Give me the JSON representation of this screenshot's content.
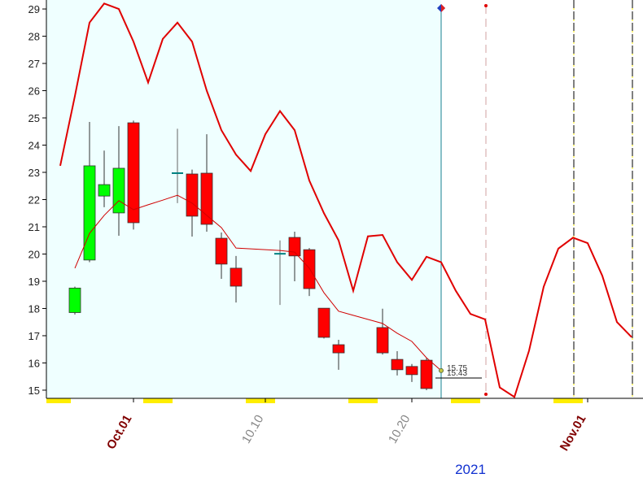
{
  "chart_data": {
    "type": "candlestick",
    "categories": [
      null,
      null,
      null,
      null,
      null,
      "Oct.01",
      null,
      null,
      null,
      null,
      null,
      null,
      null,
      null,
      "10.10",
      null,
      null,
      null,
      null,
      null,
      null,
      null,
      null,
      null,
      "10.20",
      null,
      null,
      null,
      null,
      null,
      null,
      null,
      null,
      null,
      null,
      null,
      "Nov.01",
      null,
      null,
      null
    ],
    "ohlc": {
      "up_color": "#00ff00",
      "down_color": "#ff0000",
      "doji_color": "#008080",
      "open": [
        null,
        17.85,
        19.78,
        22.13,
        21.51,
        24.82,
        null,
        null,
        22.97,
        22.94,
        22.97,
        20.58,
        19.48,
        null,
        null,
        20.01,
        20.61,
        20.16,
        18.01,
        16.67,
        null,
        null,
        17.3,
        16.13,
        15.87,
        16.1,
        null,
        null,
        null,
        null,
        null,
        null,
        null,
        null,
        null,
        null,
        null,
        null,
        null,
        null
      ],
      "high": [
        null,
        18.8,
        24.85,
        23.8,
        24.7,
        24.9,
        null,
        null,
        24.6,
        23.1,
        24.4,
        20.79,
        19.93,
        null,
        null,
        20.5,
        20.82,
        20.22,
        18.01,
        16.85,
        null,
        null,
        17.99,
        16.43,
        15.96,
        16.19,
        null,
        null,
        null,
        null,
        null,
        null,
        null,
        null,
        null,
        null,
        null,
        null,
        null,
        null
      ],
      "low": [
        null,
        17.78,
        19.7,
        21.72,
        20.67,
        20.9,
        null,
        null,
        21.87,
        20.64,
        20.82,
        19.09,
        18.22,
        null,
        null,
        18.13,
        19.0,
        18.46,
        16.9,
        15.75,
        null,
        null,
        16.31,
        15.54,
        15.3,
        15.0,
        null,
        null,
        null,
        null,
        null,
        null,
        null,
        null,
        null,
        null,
        null,
        null,
        null,
        null
      ],
      "close": [
        null,
        18.75,
        23.24,
        22.55,
        23.15,
        21.15,
        null,
        null,
        22.97,
        21.39,
        21.09,
        19.63,
        18.82,
        null,
        null,
        20.01,
        19.93,
        18.73,
        16.94,
        16.37,
        null,
        null,
        16.37,
        15.75,
        15.57,
        15.06,
        null,
        null,
        null,
        null,
        null,
        null,
        null,
        null,
        null,
        null,
        null,
        null,
        null,
        null
      ]
    },
    "series": [
      {
        "color": "#e00000",
        "values": [
          23.24,
          25.8,
          28.5,
          29.2,
          29.0,
          27.8,
          26.3,
          27.9,
          28.5,
          27.8,
          26.0,
          24.55,
          23.65,
          23.05,
          24.4,
          25.25,
          24.55,
          22.7,
          21.5,
          20.5,
          18.65,
          20.65,
          20.7,
          19.7,
          19.05,
          19.9,
          19.7,
          18.65,
          17.8,
          17.6,
          15.1,
          14.75,
          16.45,
          18.8,
          20.2,
          20.6,
          20.4,
          19.2,
          17.5,
          16.95
        ]
      },
      {
        "color": "#d00000",
        "values": [
          null,
          19.48,
          20.76,
          21.42,
          21.96,
          21.63,
          21.81,
          21.98,
          22.16,
          21.87,
          21.42,
          20.97,
          20.22,
          20.19,
          20.16,
          20.13,
          20.07,
          19.48,
          18.58,
          17.9,
          17.75,
          17.6,
          17.45,
          17.09,
          16.79,
          16.19,
          15.72,
          null,
          null,
          null,
          null,
          null,
          null,
          null,
          null,
          null,
          null,
          null,
          null,
          null
        ]
      }
    ],
    "annotations": [
      "15.75",
      "15.43"
    ],
    "xlabel": "2021",
    "ylim": [
      14.7,
      29.33
    ],
    "yticks": [
      15,
      16,
      17,
      18,
      19,
      20,
      21,
      22,
      23,
      24,
      25,
      26,
      27,
      28,
      29
    ]
  }
}
